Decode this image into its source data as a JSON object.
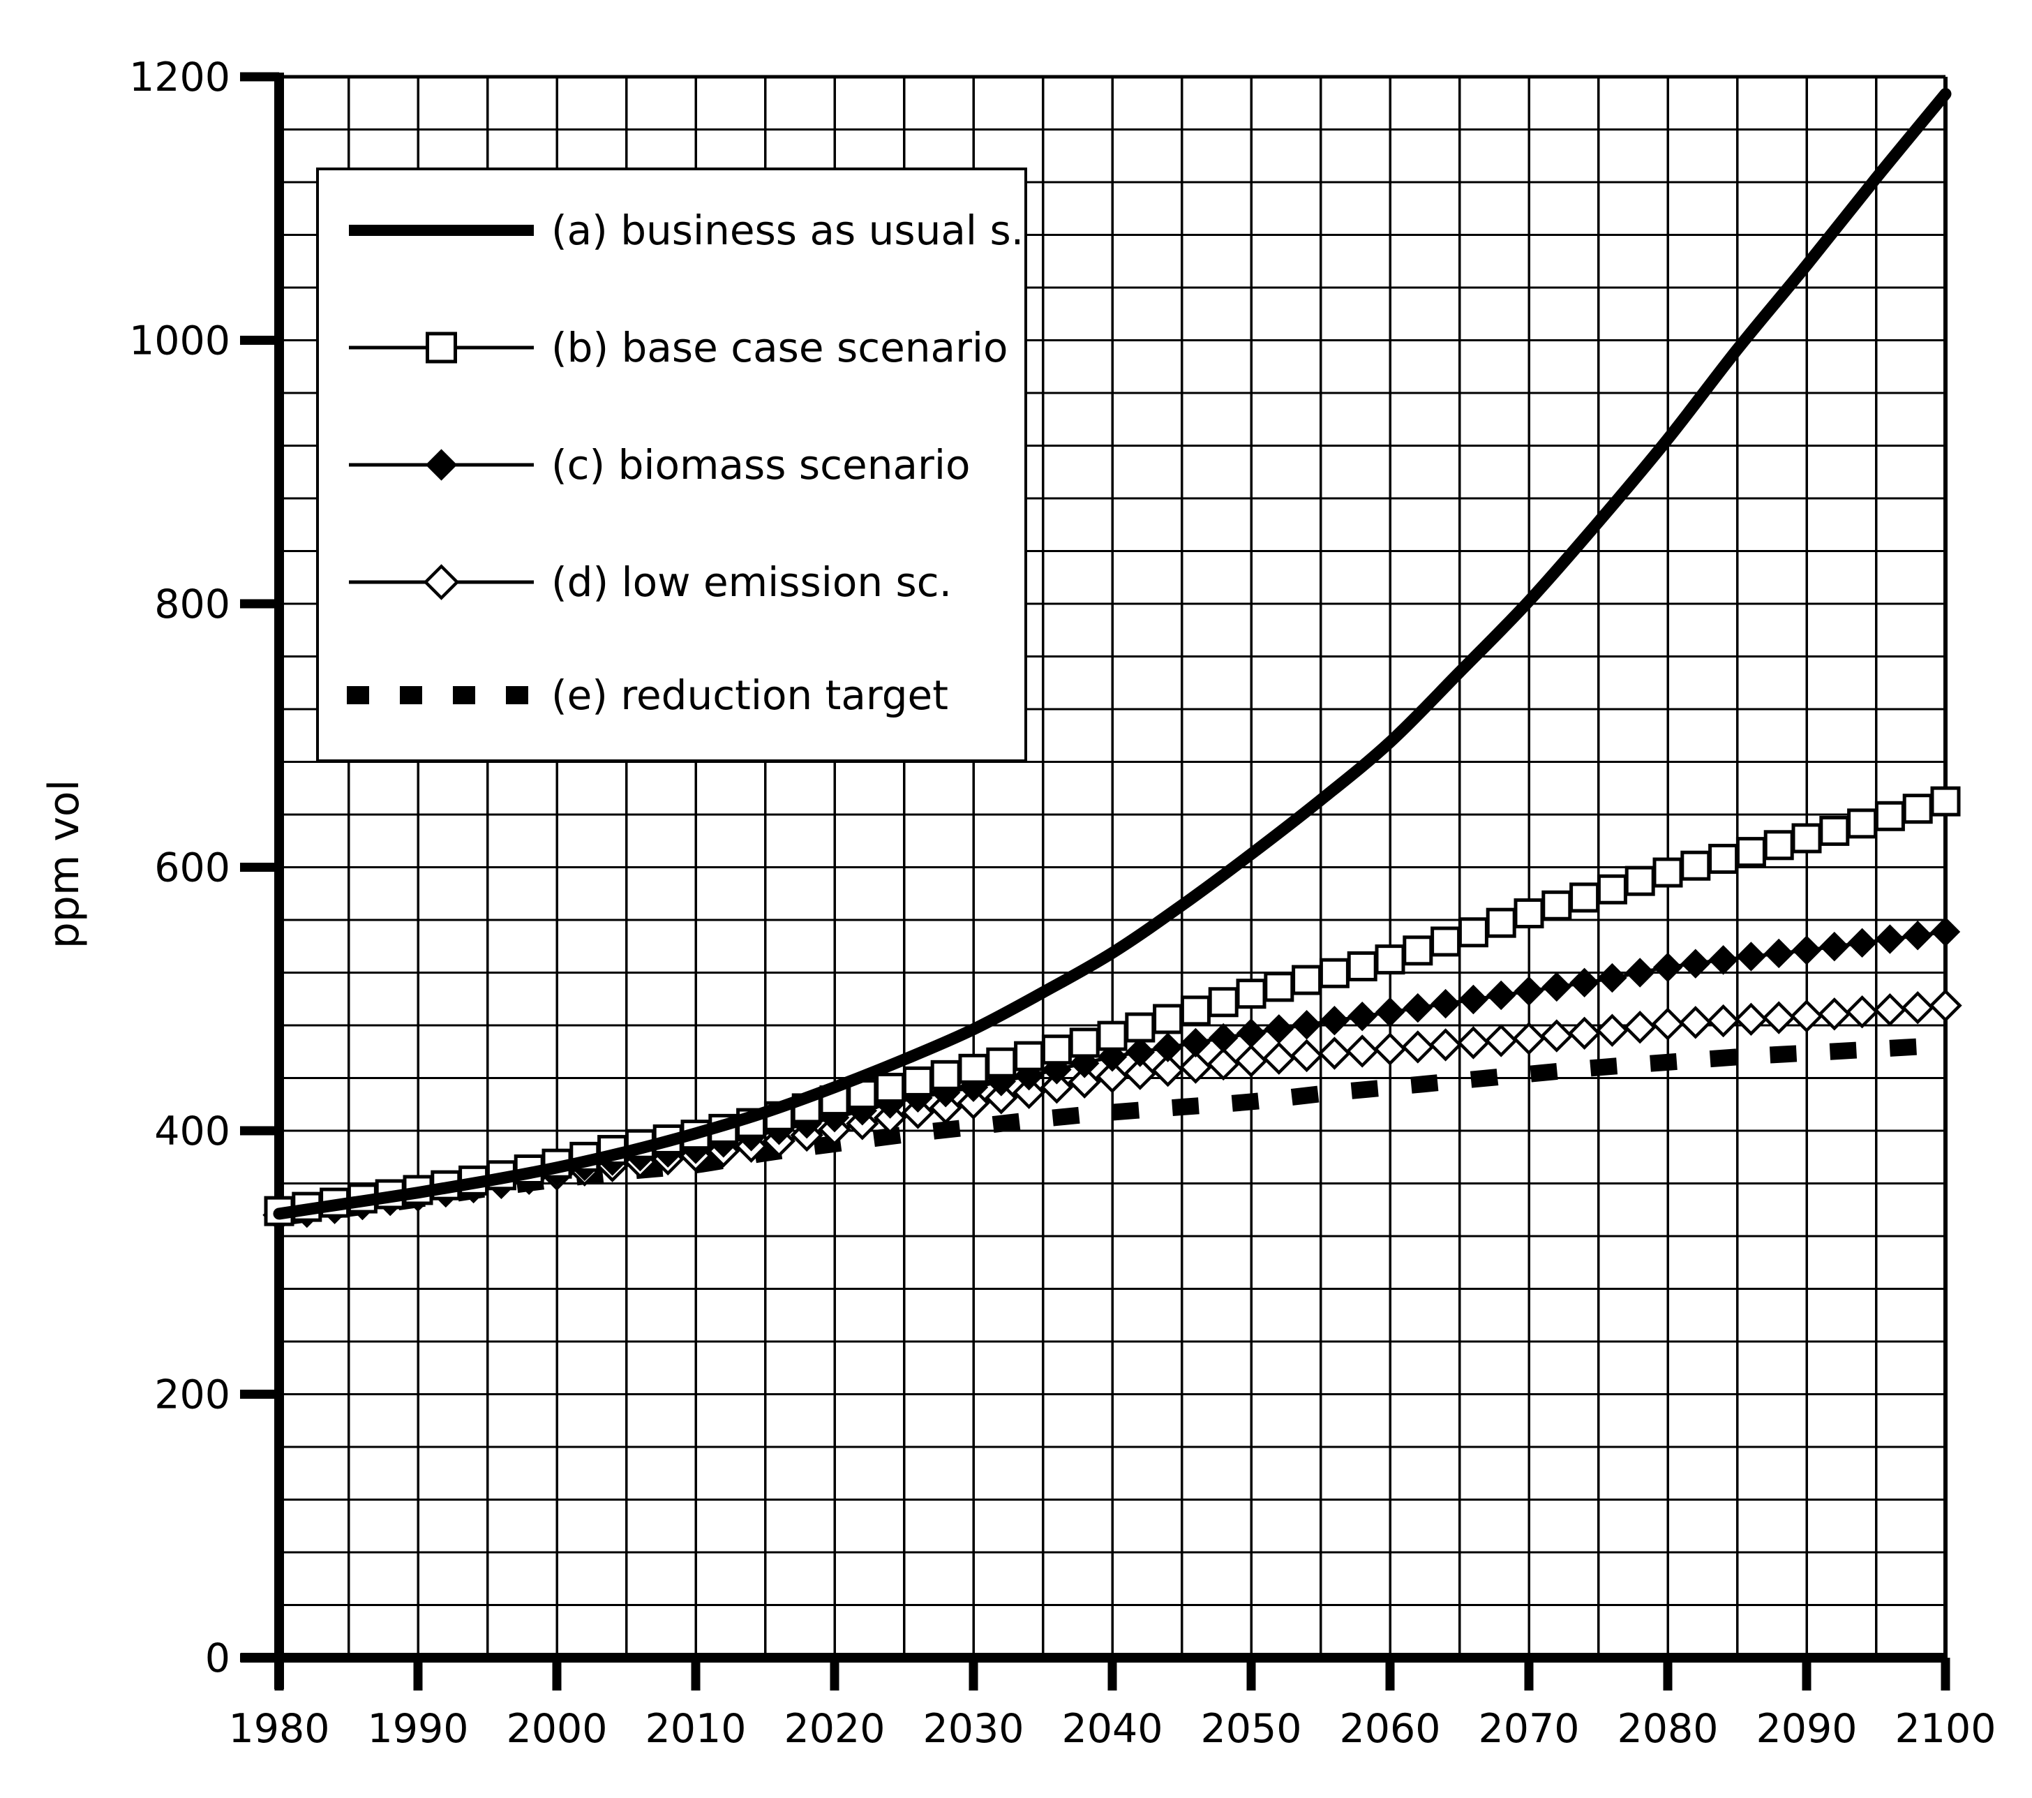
{
  "chart_data": {
    "type": "line",
    "title": "",
    "xlabel": "",
    "ylabel": "ppm vol",
    "xlim": [
      1980,
      2100
    ],
    "ylim": [
      0,
      1200
    ],
    "x_ticks": [
      1980,
      1990,
      2000,
      2010,
      2020,
      2030,
      2040,
      2050,
      2060,
      2070,
      2080,
      2090,
      2100
    ],
    "y_ticks": [
      0,
      200,
      400,
      600,
      800,
      1000,
      1200
    ],
    "x_minor_grid_step_years": 5,
    "y_minor_grid_step_ppm": 40,
    "grid": true,
    "legend_position": "top-left",
    "colors": {
      "foreground": "#000000",
      "background": "#ffffff"
    },
    "x": [
      1980,
      1985,
      1990,
      1995,
      2000,
      2005,
      2010,
      2015,
      2020,
      2025,
      2030,
      2035,
      2040,
      2045,
      2050,
      2055,
      2060,
      2065,
      2070,
      2075,
      2080,
      2085,
      2090,
      2095,
      2100
    ],
    "series": [
      {
        "id": "a",
        "label": "(a) business as usual s.",
        "line_style": "thick-solid",
        "marker": "none",
        "values": [
          337,
          345,
          353,
          362,
          372,
          384,
          398,
          414,
          433,
          454,
          477,
          505,
          535,
          571,
          610,
          651,
          695,
          748,
          802,
          862,
          925,
          993,
          1057,
          1123,
          1187
        ]
      },
      {
        "id": "b",
        "label": "(b) base case scenario",
        "line_style": "thin-solid",
        "marker": "open-square",
        "values": [
          339,
          347,
          355,
          364,
          375,
          388,
          397,
          408,
          423,
          435,
          447,
          459,
          472,
          488,
          504,
          517,
          530,
          547,
          565,
          580,
          596,
          609,
          622,
          636,
          650
        ]
      },
      {
        "id": "c",
        "label": "(c) biomass scenario",
        "line_style": "thin-solid",
        "marker": "filled-diamond",
        "values": [
          337,
          344,
          352,
          360,
          369,
          379,
          386,
          398,
          410,
          423,
          433,
          444,
          456,
          465,
          474,
          482,
          490,
          498,
          506,
          514,
          524,
          531,
          537,
          544,
          551
        ]
      },
      {
        "id": "d",
        "label": "(d) low emission sc.",
        "line_style": "thin-solid",
        "marker": "open-diamond",
        "values": [
          336,
          343,
          351,
          359,
          367,
          375,
          381,
          390,
          401,
          412,
          421,
          431,
          441,
          447,
          453,
          458,
          462,
          466,
          470,
          475,
          481,
          484,
          487,
          491,
          495
        ]
      },
      {
        "id": "e",
        "label": "(e) reduction target",
        "line_style": "thick-dashed",
        "marker": "none",
        "values": [
          334,
          341,
          348,
          356,
          363,
          369,
          374,
          383,
          390,
          397,
          403,
          409,
          414,
          418,
          422,
          428,
          433,
          438,
          443,
          448,
          452,
          456,
          459,
          462,
          465
        ]
      }
    ]
  }
}
